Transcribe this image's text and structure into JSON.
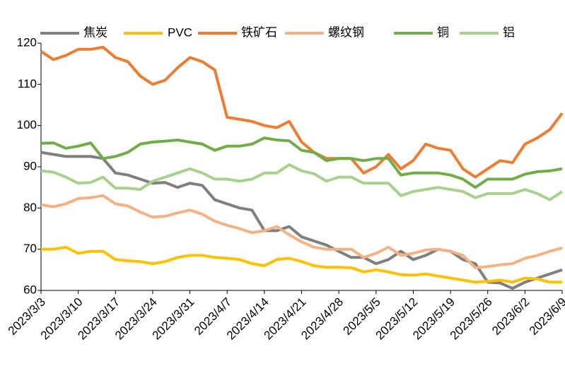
{
  "chart_data": {
    "type": "line",
    "categories": [
      "2023/3/3",
      null,
      null,
      "2023/3/10",
      null,
      null,
      "2023/3/17",
      null,
      null,
      "2023/3/24",
      null,
      null,
      "2023/3/31",
      null,
      null,
      "2023/4/7",
      null,
      null,
      "2023/4/14",
      null,
      null,
      "2023/4/21",
      null,
      null,
      "2023/4/28",
      null,
      null,
      "2023/5/5",
      null,
      null,
      "2023/5/12",
      null,
      null,
      "2023/5/19",
      null,
      null,
      "2023/5/26",
      null,
      null,
      "2023/6/2",
      null,
      null,
      "2023/6/9"
    ],
    "ylim": [
      60,
      120
    ],
    "yticks": [
      60,
      70,
      80,
      90,
      100,
      110,
      120
    ],
    "legend": "top",
    "series": [
      {
        "name": "焦炭",
        "color": "#7f7f7f",
        "values": [
          93.5,
          93,
          92.5,
          92.5,
          92.5,
          92,
          88.5,
          88,
          87,
          86,
          86.2,
          85,
          86,
          85.5,
          82,
          81,
          80,
          79.5,
          74.5,
          74.5,
          75.5,
          73,
          72,
          71,
          69.5,
          68,
          68,
          66.5,
          67.5,
          69.5,
          67.5,
          68.5,
          70,
          69.5,
          67.5,
          66.5,
          62,
          61.8,
          60.5,
          62,
          63,
          64,
          65
        ]
      },
      {
        "name": "PVC",
        "color": "#ffc000",
        "values": [
          70,
          70,
          70.5,
          69,
          69.5,
          69.5,
          67.5,
          67.2,
          67,
          66.5,
          67,
          68,
          68.5,
          68.5,
          68,
          67.8,
          67.5,
          66.5,
          66,
          67.5,
          67.8,
          67,
          66,
          65.6,
          65.6,
          65.5,
          64.5,
          65,
          64.5,
          63.8,
          63.7,
          64,
          63.5,
          63,
          62.5,
          62,
          62.2,
          62.5,
          62,
          63,
          62.8,
          62,
          62
        ]
      },
      {
        "name": "铁矿石",
        "color": "#ed7d31",
        "values": [
          118,
          116,
          117,
          118.5,
          118.5,
          119,
          116.5,
          115.5,
          112,
          110,
          111,
          114,
          116.5,
          115.5,
          113.5,
          102,
          101.5,
          101,
          100,
          99.5,
          101,
          96,
          93.5,
          92,
          92,
          92,
          88.5,
          90,
          93,
          89.5,
          91.5,
          95.5,
          94.5,
          94,
          89.5,
          87.5,
          89.5,
          91.5,
          91,
          95.5,
          97,
          99,
          103
        ]
      },
      {
        "name": "螺纹钢",
        "color": "#f4b183",
        "values": [
          80.8,
          80.3,
          81,
          82.3,
          82.5,
          83,
          81,
          80.5,
          79,
          77.8,
          78,
          78.8,
          79.5,
          78.5,
          76.8,
          75.8,
          75,
          74,
          74.5,
          75.5,
          73.5,
          71.8,
          70.5,
          70,
          70,
          70,
          68,
          69,
          70.5,
          68.5,
          69,
          69.8,
          70,
          69.5,
          68.5,
          65.5,
          65.8,
          66.2,
          66.5,
          67.8,
          68.5,
          69.5,
          70.3
        ]
      },
      {
        "name": "铜",
        "color": "#70ad47",
        "values": [
          95.7,
          95.8,
          94.5,
          95,
          95.8,
          92,
          92.5,
          93.5,
          95.5,
          96,
          96.2,
          96.5,
          96,
          95.5,
          94,
          95,
          95,
          95.5,
          97,
          96.5,
          96.3,
          94,
          93.5,
          91.5,
          92,
          92,
          91.5,
          92,
          92,
          88,
          88.5,
          88.5,
          88.5,
          88,
          87,
          85,
          87,
          87,
          87,
          88.2,
          88.8,
          89,
          89.5
        ]
      },
      {
        "name": "铝",
        "color": "#a9d18e",
        "values": [
          89,
          88.7,
          87.5,
          86,
          86.2,
          87.5,
          84.8,
          84.8,
          84.5,
          86.5,
          87.5,
          88.5,
          89.5,
          88.5,
          87,
          87,
          86.5,
          87,
          88.5,
          88.5,
          90.5,
          89,
          88.3,
          86.5,
          87.5,
          87.5,
          86,
          86,
          86,
          83,
          84,
          84.5,
          85,
          84.5,
          84,
          82.5,
          83.5,
          83.5,
          83.5,
          84.5,
          83.5,
          82,
          84
        ]
      }
    ]
  }
}
